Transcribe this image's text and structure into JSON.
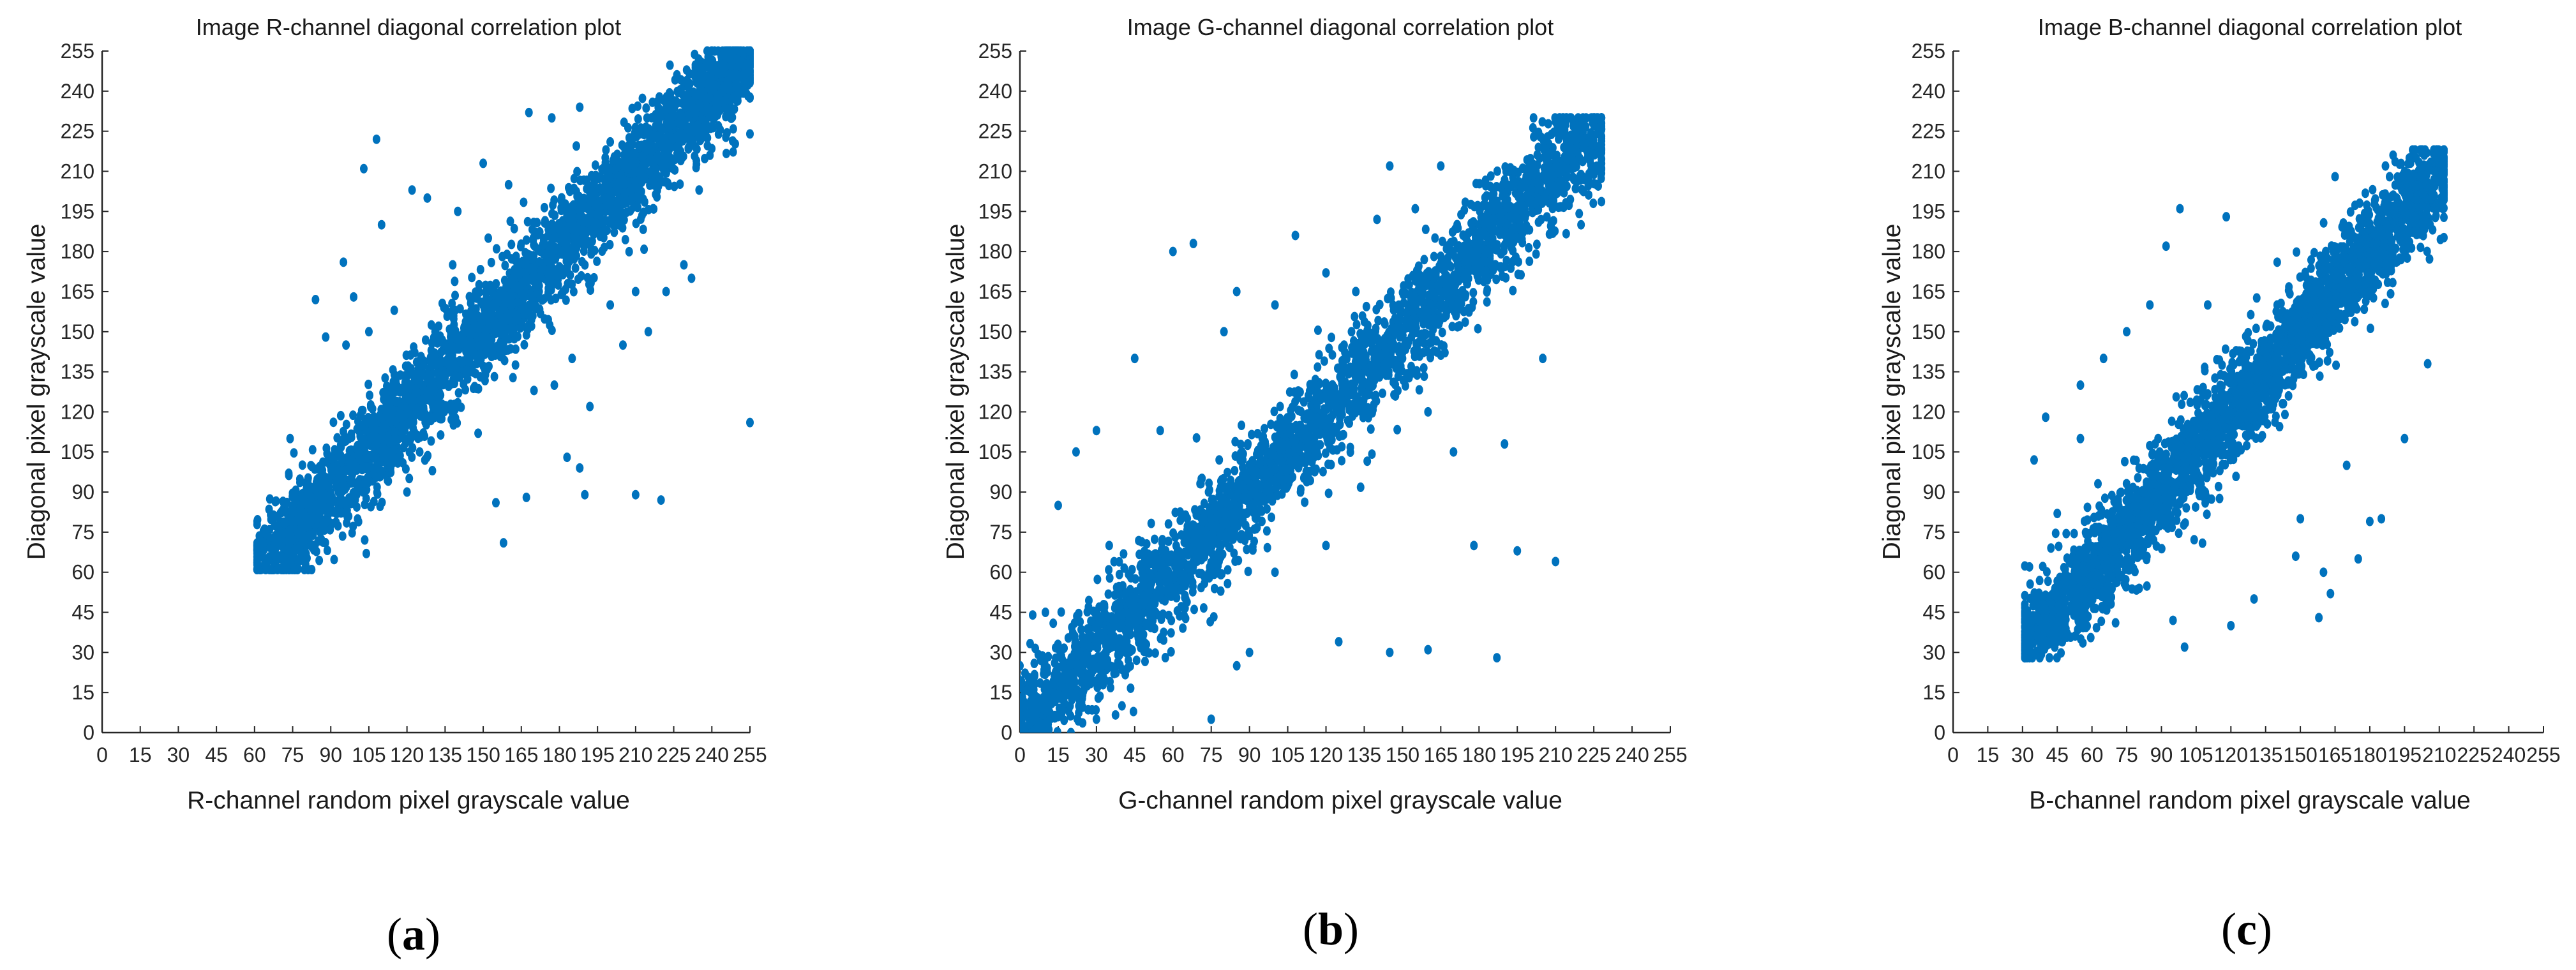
{
  "chart_data": [
    {
      "type": "scatter",
      "panel_label": "a",
      "title": "Image R-channel diagonal correlation plot",
      "xlabel": "R-channel random pixel grayscale value",
      "ylabel": "Diagonal pixel grayscale value",
      "xlim": [
        0,
        255
      ],
      "ylim": [
        0,
        255
      ],
      "xticks": [
        0,
        15,
        30,
        45,
        60,
        75,
        90,
        105,
        120,
        135,
        150,
        165,
        180,
        195,
        210,
        225,
        240,
        255
      ],
      "yticks": [
        0,
        15,
        30,
        45,
        60,
        75,
        90,
        105,
        120,
        135,
        150,
        165,
        180,
        195,
        210,
        225,
        240,
        255
      ],
      "grid": false,
      "marker_color": "#0072BD",
      "bulk_distribution": {
        "description": "dense cloud along the line y = x",
        "x_range": [
          63,
          255
        ],
        "y_range": [
          63,
          255
        ],
        "spread": 12,
        "point_count": 3000
      },
      "points": [
        [
          108,
          222
        ],
        [
          103,
          211
        ],
        [
          122,
          203
        ],
        [
          110,
          190
        ],
        [
          95,
          176
        ],
        [
          99,
          163
        ],
        [
          84,
          162
        ],
        [
          115,
          158
        ],
        [
          88,
          148
        ],
        [
          96,
          145
        ],
        [
          105,
          150
        ],
        [
          205,
          145
        ],
        [
          229,
          175
        ],
        [
          222,
          165
        ],
        [
          232,
          170
        ],
        [
          210,
          165
        ],
        [
          255,
          116
        ],
        [
          220,
          87
        ],
        [
          210,
          89
        ],
        [
          183,
          103
        ],
        [
          190,
          89
        ],
        [
          188,
          99
        ],
        [
          158,
          71
        ],
        [
          155,
          86
        ],
        [
          167,
          88
        ],
        [
          148,
          112
        ],
        [
          192,
          122
        ],
        [
          170,
          128
        ],
        [
          178,
          130
        ],
        [
          185,
          140
        ],
        [
          168,
          232
        ],
        [
          177,
          230
        ],
        [
          188,
          234
        ],
        [
          200,
          221
        ],
        [
          255,
          224
        ],
        [
          246,
          232
        ],
        [
          235,
          203
        ],
        [
          140,
          195
        ],
        [
          128,
          200
        ],
        [
          150,
          213
        ],
        [
          138,
          175
        ],
        [
          125,
          105
        ],
        [
          104,
          67
        ],
        [
          70,
          66
        ],
        [
          64,
          63
        ],
        [
          62,
          72
        ],
        [
          74,
          110
        ],
        [
          120,
          90
        ],
        [
          130,
          98
        ],
        [
          152,
          185
        ],
        [
          160,
          205
        ],
        [
          200,
          160
        ],
        [
          215,
          150
        ],
        [
          240,
          255
        ],
        [
          250,
          252
        ],
        [
          255,
          255
        ]
      ]
    },
    {
      "type": "scatter",
      "panel_label": "b",
      "title": "Image G-channel diagonal correlation plot",
      "xlabel": "G-channel random pixel grayscale value",
      "ylabel": "Diagonal pixel grayscale value",
      "xlim": [
        0,
        255
      ],
      "ylim": [
        0,
        255
      ],
      "xticks": [
        0,
        15,
        30,
        45,
        60,
        75,
        90,
        105,
        120,
        135,
        150,
        165,
        180,
        195,
        210,
        225,
        240,
        255
      ],
      "yticks": [
        0,
        15,
        30,
        45,
        60,
        75,
        90,
        105,
        120,
        135,
        150,
        165,
        180,
        195,
        210,
        225,
        240,
        255
      ],
      "grid": false,
      "marker_color": "#0072BD",
      "bulk_distribution": {
        "description": "dense cloud along the line y = x",
        "x_range": [
          0,
          228
        ],
        "y_range": [
          0,
          230
        ],
        "spread": 13,
        "point_count": 3000
      },
      "points": [
        [
          60,
          180
        ],
        [
          68,
          183
        ],
        [
          108,
          186
        ],
        [
          145,
          212
        ],
        [
          165,
          212
        ],
        [
          155,
          196
        ],
        [
          140,
          192
        ],
        [
          85,
          165
        ],
        [
          80,
          150
        ],
        [
          100,
          160
        ],
        [
          120,
          172
        ],
        [
          45,
          140
        ],
        [
          55,
          113
        ],
        [
          30,
          113
        ],
        [
          22,
          105
        ],
        [
          15,
          85
        ],
        [
          10,
          45
        ],
        [
          5,
          44
        ],
        [
          210,
          64
        ],
        [
          195,
          68
        ],
        [
          178,
          70
        ],
        [
          190,
          108
        ],
        [
          187,
          28
        ],
        [
          160,
          31
        ],
        [
          145,
          30
        ],
        [
          125,
          34
        ],
        [
          90,
          30
        ],
        [
          85,
          25
        ],
        [
          75,
          5
        ],
        [
          130,
          150
        ],
        [
          150,
          140
        ],
        [
          160,
          120
        ],
        [
          170,
          105
        ],
        [
          205,
          140
        ],
        [
          220,
          190
        ],
        [
          228,
          230
        ],
        [
          225,
          220
        ],
        [
          40,
          10
        ],
        [
          30,
          5
        ],
        [
          20,
          0
        ],
        [
          0,
          10
        ],
        [
          0,
          25
        ],
        [
          35,
          70
        ],
        [
          65,
          50
        ],
        [
          50,
          30
        ],
        [
          110,
          90
        ],
        [
          120,
          70
        ],
        [
          100,
          60
        ]
      ]
    },
    {
      "type": "scatter",
      "panel_label": "c",
      "title": "Image B-channel diagonal correlation plot",
      "xlabel": "B-channel random pixel grayscale value",
      "ylabel": "Diagonal pixel grayscale value",
      "xlim": [
        0,
        255
      ],
      "ylim": [
        0,
        255
      ],
      "xticks": [
        0,
        15,
        30,
        45,
        60,
        75,
        90,
        105,
        120,
        135,
        150,
        165,
        180,
        195,
        210,
        225,
        240,
        255
      ],
      "yticks": [
        0,
        15,
        30,
        45,
        60,
        75,
        90,
        105,
        120,
        135,
        150,
        165,
        180,
        195,
        210,
        225,
        240,
        255
      ],
      "grid": false,
      "marker_color": "#0072BD",
      "bulk_distribution": {
        "description": "dense cloud along the line y = x",
        "x_range": [
          33,
          212
        ],
        "y_range": [
          30,
          218
        ],
        "spread": 12,
        "point_count": 3000
      },
      "points": [
        [
          98,
          196
        ],
        [
          118,
          193
        ],
        [
          140,
          176
        ],
        [
          156,
          162
        ],
        [
          165,
          208
        ],
        [
          200,
          215
        ],
        [
          210,
          213
        ],
        [
          205,
          190
        ],
        [
          183,
          183
        ],
        [
          92,
          182
        ],
        [
          85,
          160
        ],
        [
          55,
          130
        ],
        [
          40,
          118
        ],
        [
          35,
          102
        ],
        [
          45,
          82
        ],
        [
          33,
          62
        ],
        [
          36,
          50
        ],
        [
          180,
          79
        ],
        [
          175,
          65
        ],
        [
          185,
          80
        ],
        [
          158,
          43
        ],
        [
          163,
          52
        ],
        [
          148,
          66
        ],
        [
          150,
          80
        ],
        [
          100,
          32
        ],
        [
          95,
          42
        ],
        [
          130,
          50
        ],
        [
          120,
          40
        ],
        [
          195,
          110
        ],
        [
          205,
          138
        ],
        [
          170,
          100
        ],
        [
          160,
          60
        ],
        [
          75,
          150
        ],
        [
          65,
          140
        ],
        [
          55,
          110
        ],
        [
          110,
          160
        ],
        [
          140,
          160
        ],
        [
          212,
          200
        ],
        [
          208,
          210
        ],
        [
          40,
          40
        ]
      ]
    }
  ]
}
